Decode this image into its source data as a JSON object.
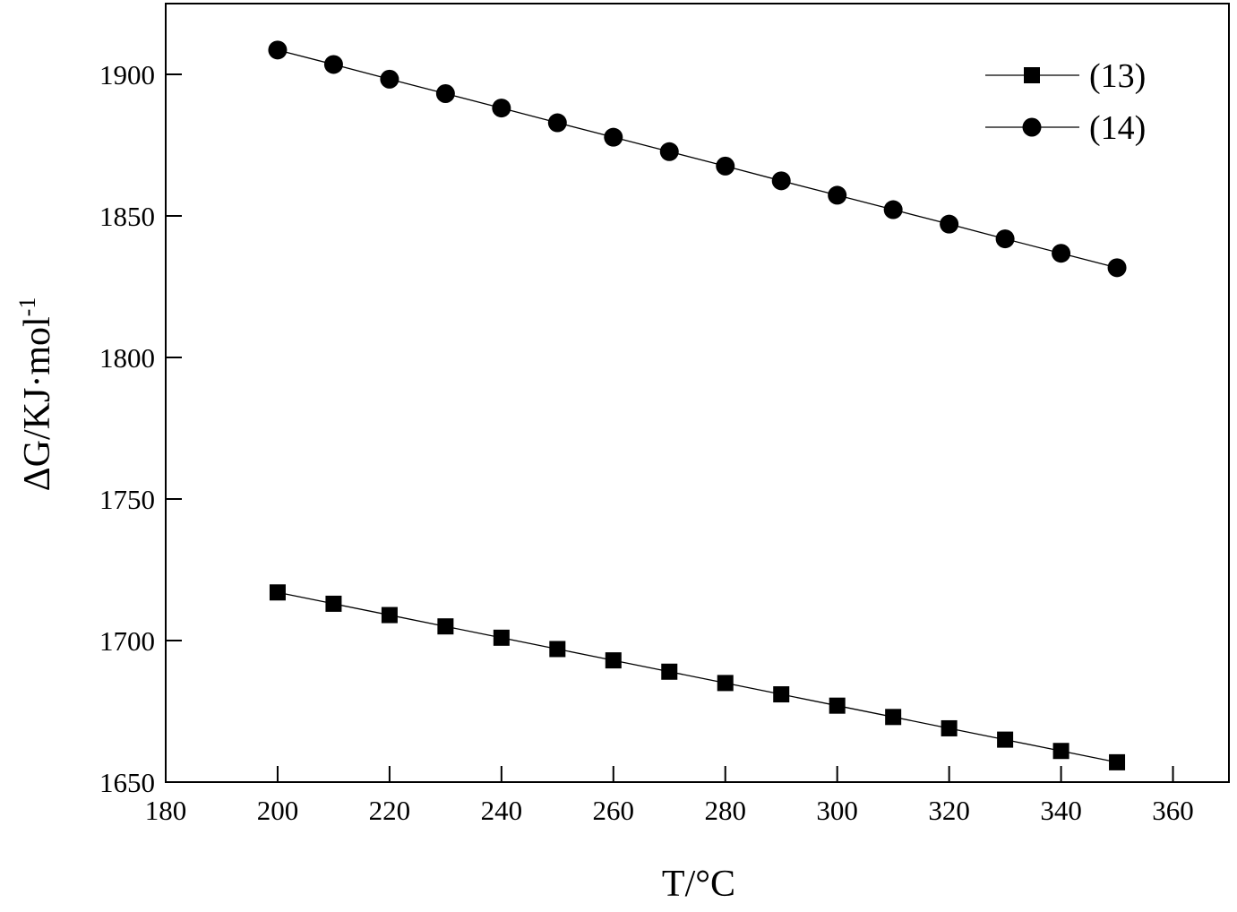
{
  "chart_data": {
    "type": "line",
    "x_label": "T/°C",
    "y_label": "ΔG/KJ·mol",
    "y_label_sup": "-1",
    "x": [
      200,
      210,
      220,
      230,
      240,
      250,
      260,
      270,
      280,
      290,
      300,
      310,
      320,
      330,
      340,
      350
    ],
    "series": [
      {
        "name": "(13)",
        "color": "#000000",
        "marker": "square",
        "values": [
          1717,
          1713,
          1709,
          1705,
          1701,
          1697,
          1693,
          1689,
          1685,
          1681,
          1677,
          1673,
          1669,
          1665,
          1661,
          1657
        ]
      },
      {
        "name": "(14)",
        "color": "#000000",
        "marker": "circle",
        "values": [
          1908.6,
          1903.5,
          1898.3,
          1893.2,
          1888.1,
          1882.9,
          1877.8,
          1872.7,
          1867.6,
          1862.4,
          1857.3,
          1852.2,
          1847.1,
          1841.9,
          1836.8,
          1831.7
        ]
      }
    ],
    "xlim": [
      180,
      370
    ],
    "xticks": [
      180,
      200,
      220,
      240,
      260,
      280,
      300,
      320,
      340,
      360
    ],
    "ylim": [
      1650,
      1925
    ],
    "yticks": [
      1650,
      1700,
      1750,
      1800,
      1850,
      1900
    ],
    "legend": "upper right",
    "grid": false
  }
}
